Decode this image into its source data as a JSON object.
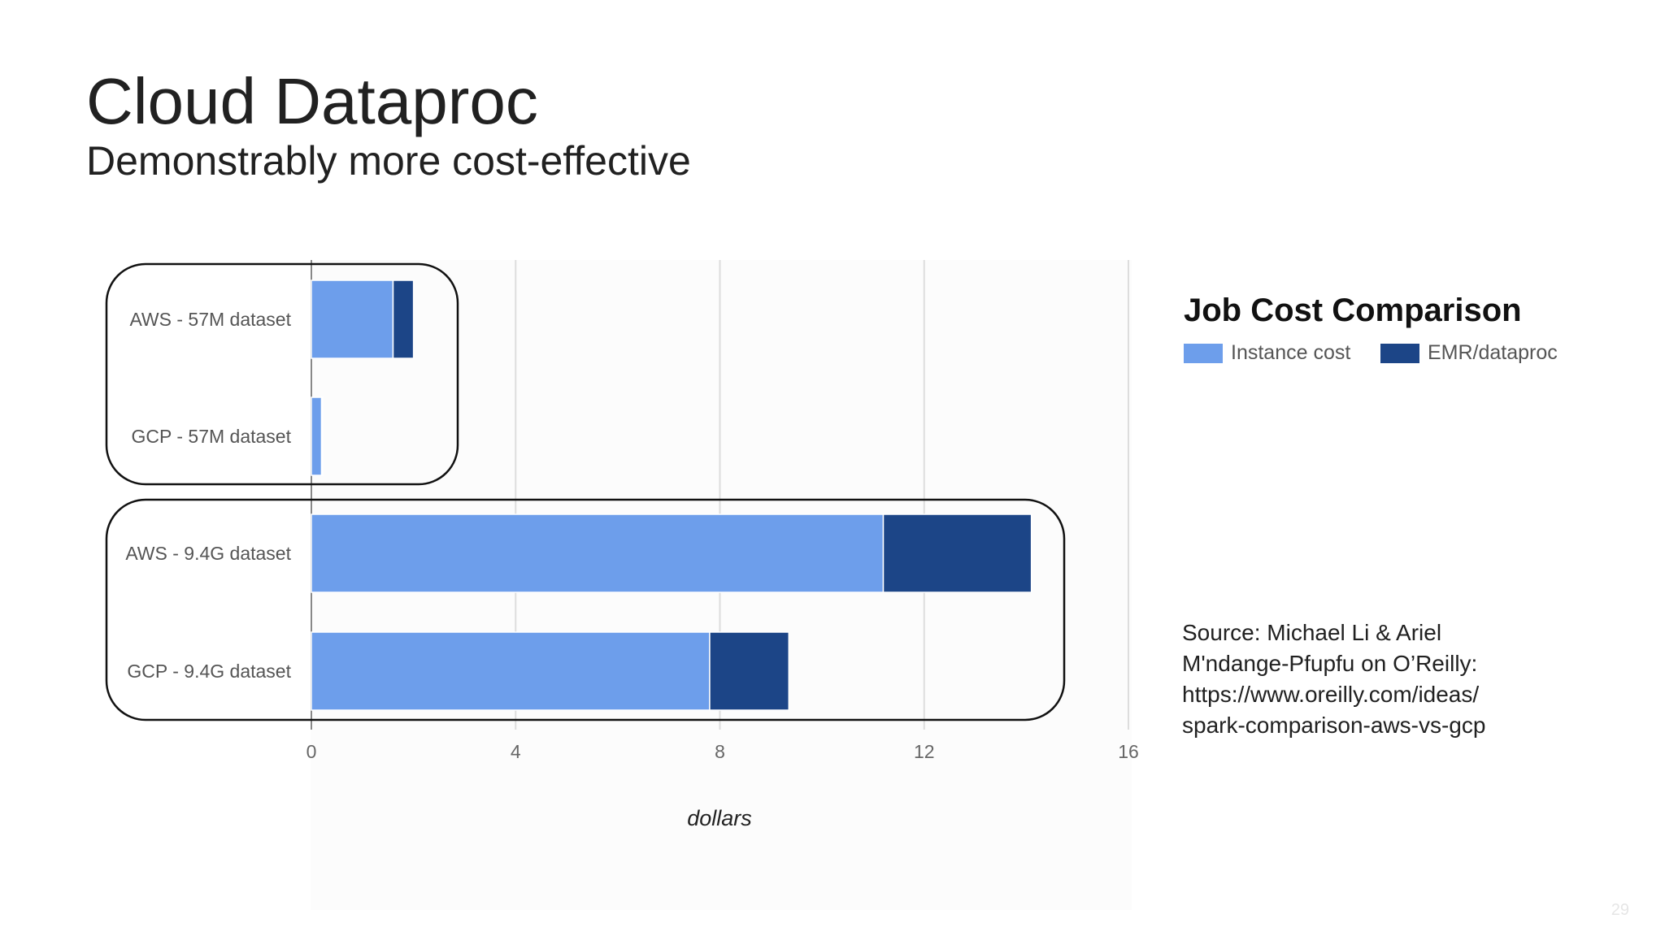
{
  "slide": {
    "title": "Cloud Dataproc",
    "subtitle": "Demonstrably more cost-effective",
    "page_number": "29"
  },
  "source": {
    "lines": [
      "Source: Michael Li & Ariel",
      "M'ndange-Pfupfu on O’Reilly:",
      "https://www.oreilly.com/ideas/",
      "spark-comparison-aws-vs-gcp"
    ]
  },
  "chart_data": {
    "type": "bar",
    "orientation": "horizontal",
    "stacked": true,
    "title": "Job Cost Comparison",
    "xlabel": "dollars",
    "ylabel": "",
    "categories": [
      "AWS - 57M dataset",
      "GCP - 57M dataset",
      "AWS - 9.4G dataset",
      "GCP - 9.4G dataset"
    ],
    "series": [
      {
        "name": "Instance cost",
        "values": [
          1.6,
          0.2,
          11.2,
          7.8
        ],
        "color": "#6d9eeb"
      },
      {
        "name": "EMR/dataproc",
        "values": [
          0.4,
          0.02,
          2.9,
          1.55
        ],
        "color": "#1c4587"
      }
    ],
    "xticks": [
      "0",
      "4",
      "8",
      "12",
      "16"
    ],
    "xlim": [
      0,
      16
    ],
    "grid": true,
    "legend_position": "top-right",
    "highlight_groups": [
      [
        0,
        1
      ],
      [
        2,
        3
      ]
    ]
  }
}
